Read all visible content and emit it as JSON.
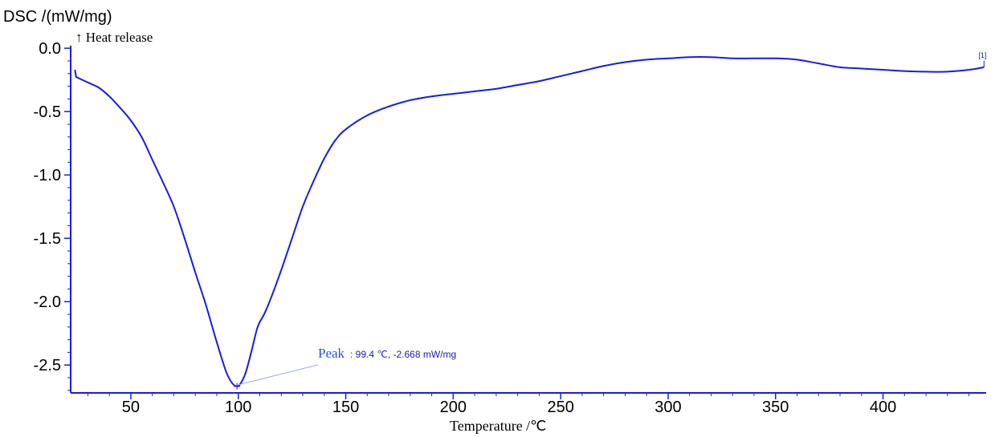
{
  "chart_data": {
    "type": "line",
    "ylabel": "DSC /(mW/mg)",
    "ylabel_note": "↑ Heat release",
    "xlabel": "Temperature /℃",
    "xlim": [
      22,
      448
    ],
    "ylim": [
      -2.72,
      0.02
    ],
    "x_ticks": [
      50,
      100,
      150,
      200,
      250,
      300,
      350,
      400
    ],
    "x_tick_labels": [
      "50",
      "100",
      "150",
      "200",
      "250",
      "300",
      "350",
      "400"
    ],
    "y_ticks": [
      0.0,
      -0.5,
      -1.0,
      -1.5,
      -2.0,
      -2.5
    ],
    "y_tick_labels": [
      "0.0",
      "-0.5",
      "-1.0",
      "-1.5",
      "-2.0",
      "-2.5"
    ],
    "grid": false,
    "color": "#1a1ae6",
    "series": [
      {
        "name": "[1]",
        "x": [
          24,
          24.5,
          25,
          30,
          35,
          40,
          45,
          50,
          55,
          60,
          65,
          70,
          75,
          80,
          85,
          90,
          95,
          99.4,
          103,
          106,
          109,
          112,
          115,
          120,
          125,
          130,
          135,
          140,
          145,
          150,
          160,
          170,
          180,
          190,
          200,
          210,
          220,
          230,
          240,
          250,
          260,
          270,
          280,
          290,
          300,
          310,
          320,
          330,
          340,
          350,
          360,
          370,
          380,
          390,
          400,
          410,
          420,
          430,
          440,
          447
        ],
        "y": [
          -0.17,
          -0.22,
          -0.23,
          -0.27,
          -0.31,
          -0.38,
          -0.47,
          -0.57,
          -0.7,
          -0.88,
          -1.06,
          -1.25,
          -1.5,
          -1.77,
          -2.03,
          -2.32,
          -2.58,
          -2.668,
          -2.58,
          -2.4,
          -2.2,
          -2.1,
          -1.98,
          -1.75,
          -1.5,
          -1.25,
          -1.05,
          -0.87,
          -0.73,
          -0.64,
          -0.53,
          -0.46,
          -0.41,
          -0.38,
          -0.36,
          -0.34,
          -0.32,
          -0.29,
          -0.26,
          -0.22,
          -0.18,
          -0.14,
          -0.11,
          -0.09,
          -0.08,
          -0.07,
          -0.07,
          -0.08,
          -0.08,
          -0.08,
          -0.09,
          -0.12,
          -0.15,
          -0.16,
          -0.17,
          -0.18,
          -0.185,
          -0.185,
          -0.17,
          -0.15
        ]
      }
    ],
    "annotation": {
      "word": "Peak",
      "value_text": ": 99.4 ℃, -2.668 mW/mg",
      "x": 99.4,
      "y": -2.668
    },
    "curve_tag": "[1]"
  }
}
